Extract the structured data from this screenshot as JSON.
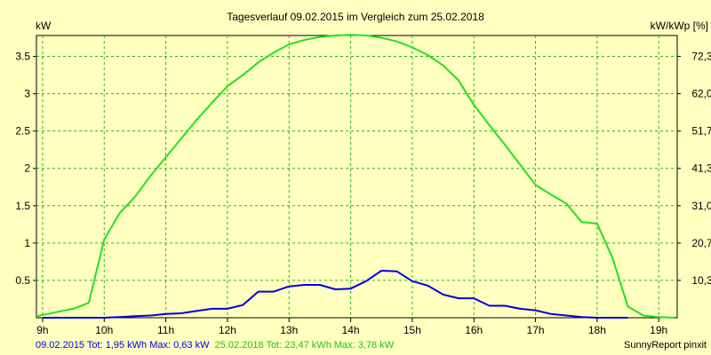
{
  "chart_data": {
    "type": "line",
    "title": "Tagesverlauf 09.02.2015 im Vergleich zum 25.02.2018",
    "ylabel": "kW",
    "ylabel_right": "kW/kWp [%]",
    "ylim": [
      0,
      3.78
    ],
    "xlim": [
      8.9,
      19.3
    ],
    "grid": true,
    "y_ticks": [
      0.5,
      1,
      1.5,
      2,
      2.5,
      3,
      3.5
    ],
    "y_tick_labels": [
      "0.5",
      "1",
      "1.5",
      "2",
      "2.5",
      "3",
      "3.5"
    ],
    "y_right_ticks": [
      0.5,
      1,
      1.5,
      2,
      2.5,
      3,
      3.5
    ],
    "y_right_tick_labels": [
      "10,3",
      "20,7",
      "31,0",
      "41,3",
      "51,7",
      "62,0",
      "72,3"
    ],
    "x_ticks": [
      9,
      10,
      11,
      12,
      13,
      14,
      15,
      16,
      17,
      18,
      19
    ],
    "x_tick_labels": [
      "9h",
      "10h",
      "11h",
      "12h",
      "13h",
      "14h",
      "15h",
      "16h",
      "17h",
      "18h",
      "19h"
    ],
    "series": [
      {
        "color": "#0000E0",
        "x": [
          9.0,
          9.5,
          9.75,
          10.0,
          10.25,
          10.5,
          10.75,
          11.0,
          11.25,
          11.5,
          11.75,
          12.0,
          12.25,
          12.5,
          12.75,
          13.0,
          13.25,
          13.5,
          13.75,
          14.0,
          14.25,
          14.5,
          14.75,
          15.0,
          15.25,
          15.5,
          15.75,
          16.0,
          16.25,
          16.5,
          16.75,
          17.0,
          17.25,
          17.5,
          17.75,
          18.0,
          18.25,
          18.5
        ],
        "y": [
          0.0,
          0.0,
          0.0,
          0.0,
          0.01,
          0.02,
          0.03,
          0.05,
          0.06,
          0.09,
          0.12,
          0.12,
          0.17,
          0.35,
          0.35,
          0.42,
          0.44,
          0.44,
          0.38,
          0.39,
          0.49,
          0.63,
          0.62,
          0.49,
          0.43,
          0.31,
          0.26,
          0.26,
          0.16,
          0.16,
          0.12,
          0.1,
          0.05,
          0.03,
          0.01,
          0.0,
          0.0,
          0.0
        ]
      },
      {
        "color": "#22E022",
        "x": [
          8.9,
          9.25,
          9.5,
          9.75,
          10.0,
          10.25,
          10.5,
          10.75,
          11.0,
          11.25,
          11.5,
          11.75,
          12.0,
          12.25,
          12.5,
          12.75,
          13.0,
          13.25,
          13.5,
          13.75,
          14.0,
          14.25,
          14.5,
          14.75,
          15.0,
          15.25,
          15.5,
          15.75,
          16.0,
          16.25,
          16.5,
          16.75,
          17.0,
          17.25,
          17.5,
          17.75,
          18.0,
          18.25,
          18.5,
          18.75,
          19.0,
          19.25
        ],
        "y": [
          0.02,
          0.08,
          0.12,
          0.2,
          1.05,
          1.4,
          1.62,
          1.9,
          2.15,
          2.4,
          2.65,
          2.88,
          3.1,
          3.25,
          3.42,
          3.55,
          3.66,
          3.72,
          3.76,
          3.78,
          3.79,
          3.78,
          3.75,
          3.7,
          3.62,
          3.52,
          3.38,
          3.18,
          2.85,
          2.58,
          2.32,
          2.05,
          1.78,
          1.65,
          1.53,
          1.28,
          1.26,
          0.8,
          0.15,
          0.03,
          0.01,
          0.0
        ]
      }
    ]
  },
  "footer": {
    "left_2015": "09.02.2015 Tot: 1,95 kWh Max: 0,63 kW",
    "left_2018": "25.02.2018 Tot: 23,47 kWh Max: 3,78 kW",
    "right": "SunnyReport pinxit"
  }
}
